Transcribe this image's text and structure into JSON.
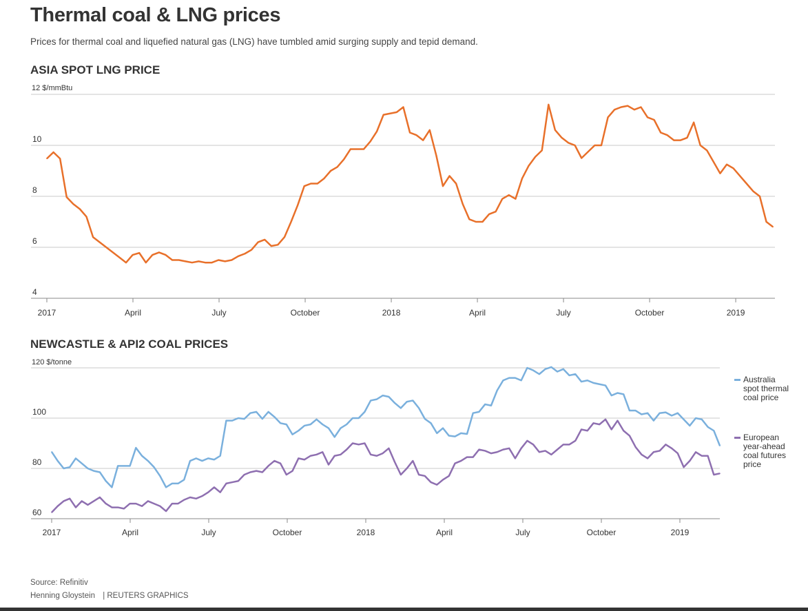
{
  "header": {
    "title": "Thermal coal & LNG prices",
    "subtitle": "Prices for thermal coal and liquefied natural gas (LNG) have tumbled amid surging supply and tepid demand."
  },
  "footer": {
    "source": "Source: Refinitiv",
    "credit": "Henning Gloystein",
    "brand": "| REUTERS GRAPHICS"
  },
  "chart_data": [
    {
      "type": "line",
      "title": "ASIA SPOT LNG PRICE",
      "unit_label": "12 $/mmBtu",
      "xlabel": "",
      "ylabel": "$/mmBtu",
      "ylim": [
        4,
        12
      ],
      "yticks": [
        4,
        6,
        8,
        10,
        12
      ],
      "ytick_labels": [
        "4",
        "6",
        "8",
        "10",
        ""
      ],
      "x_start": "2017-01",
      "x_interval": "weekly",
      "xtick_labels": [
        "2017",
        "April",
        "July",
        "October",
        "2018",
        "April",
        "July",
        "October",
        "2019"
      ],
      "xtick_months": [
        0,
        3,
        6,
        9,
        12,
        15,
        18,
        21,
        24
      ],
      "grid": true,
      "colors": {
        "line": "#e8702a"
      },
      "series": [
        {
          "name": "Asia spot LNG price",
          "values": [
            9.48,
            9.73,
            9.48,
            7.97,
            7.7,
            7.5,
            7.2,
            6.4,
            6.2,
            6.0,
            5.8,
            5.6,
            5.4,
            5.7,
            5.78,
            5.4,
            5.7,
            5.8,
            5.7,
            5.5,
            5.5,
            5.45,
            5.4,
            5.45,
            5.4,
            5.4,
            5.5,
            5.45,
            5.5,
            5.65,
            5.75,
            5.9,
            6.2,
            6.3,
            6.05,
            6.1,
            6.4,
            7.0,
            7.65,
            8.4,
            8.5,
            8.5,
            8.7,
            9.0,
            9.15,
            9.45,
            9.85,
            9.85,
            9.85,
            10.15,
            10.55,
            11.2,
            11.25,
            11.3,
            11.5,
            10.5,
            10.4,
            10.2,
            10.6,
            9.6,
            8.4,
            8.8,
            8.5,
            7.7,
            7.1,
            7.0,
            7.0,
            7.3,
            7.4,
            7.9,
            8.05,
            7.9,
            8.7,
            9.2,
            9.55,
            9.8,
            11.6,
            10.6,
            10.3,
            10.1,
            10.0,
            9.5,
            9.75,
            10.0,
            10.0,
            11.1,
            11.4,
            11.5,
            11.55,
            11.4,
            11.5,
            11.1,
            11.0,
            10.5,
            10.4,
            10.2,
            10.2,
            10.3,
            10.9,
            10.0,
            9.8,
            9.35,
            8.9,
            9.25,
            9.1,
            8.8,
            8.5,
            8.2,
            8.0,
            7.0,
            6.8
          ]
        }
      ]
    },
    {
      "type": "line",
      "title": "NEWCASTLE & API2 COAL PRICES",
      "unit_label": "120 $/tonne",
      "xlabel": "",
      "ylabel": "$/tonne",
      "ylim": [
        60,
        120
      ],
      "yticks": [
        60,
        80,
        100,
        120
      ],
      "ytick_labels": [
        "60",
        "80",
        "100",
        ""
      ],
      "x_start": "2017-01",
      "x_interval": "weekly",
      "xtick_labels": [
        "2017",
        "April",
        "July",
        "October",
        "2018",
        "April",
        "July",
        "October",
        "2019"
      ],
      "xtick_months": [
        0,
        3,
        6,
        9,
        12,
        15,
        18,
        21,
        24
      ],
      "grid": true,
      "legend_position": "right",
      "series": [
        {
          "name": "Australia spot thermal coal price",
          "color": "#7ab0dd",
          "values": [
            86.6,
            83,
            80,
            80.5,
            84,
            82,
            80,
            79,
            78.5,
            75,
            72.5,
            81,
            81,
            81,
            88.2,
            85,
            83,
            80.5,
            77,
            72.5,
            74,
            74,
            75.5,
            83,
            84,
            83,
            84,
            83.5,
            85,
            99,
            99,
            100,
            99.7,
            102,
            102.5,
            99.7,
            102.5,
            100.5,
            98,
            97.5,
            93.5,
            95,
            97,
            97.5,
            99.5,
            97.5,
            96,
            92.5,
            96,
            97.5,
            100,
            100,
            102.5,
            107,
            107.5,
            109,
            108.5,
            106,
            104,
            106.5,
            107,
            104,
            99.7,
            98,
            94,
            96,
            93,
            92.7,
            94,
            93.7,
            102,
            102.5,
            105.5,
            105,
            111,
            115,
            116,
            116,
            115,
            120,
            119,
            117.5,
            119.5,
            120.3,
            118.5,
            119.5,
            117,
            117.5,
            114.5,
            115,
            114,
            113.5,
            113,
            109,
            110,
            109.5,
            103,
            103,
            101.5,
            102,
            99,
            102,
            102.3,
            101,
            102,
            99.5,
            97,
            100,
            99.5,
            96.5,
            95,
            89
          ]
        },
        {
          "name": "European year-ahead coal futures price",
          "color": "#8e6fb0",
          "values": [
            62.5,
            65,
            67,
            68,
            64.5,
            67,
            65.5,
            67,
            68.5,
            66,
            64.5,
            64.5,
            64,
            66,
            66,
            65,
            67,
            66,
            65,
            63,
            66,
            66,
            67.5,
            68.5,
            68,
            69,
            70.5,
            72.5,
            70.5,
            74,
            74.5,
            75,
            77.5,
            78.5,
            79,
            78.5,
            81,
            83,
            82,
            77.5,
            79,
            84,
            83.5,
            85,
            85.5,
            86.5,
            81.5,
            85,
            85.5,
            87.5,
            90,
            89.5,
            90,
            85.5,
            85,
            86,
            88,
            82.5,
            77.5,
            80,
            83,
            77.5,
            77,
            74.5,
            73.5,
            75.5,
            77,
            82,
            83,
            84.5,
            84.5,
            87.5,
            87,
            86,
            86.5,
            87.5,
            88,
            84,
            88,
            91,
            89.5,
            86.5,
            87,
            85.5,
            87.5,
            89.5,
            89.5,
            91,
            95.5,
            95,
            98,
            97.5,
            99.5,
            95.5,
            99,
            95,
            93,
            88.5,
            85.5,
            84,
            86.5,
            87,
            89.5,
            88,
            86,
            80.5,
            83,
            86.5,
            85,
            85,
            77.5,
            78
          ]
        }
      ],
      "legend": [
        "Australia spot thermal coal price",
        "European year-ahead coal futures price"
      ]
    }
  ]
}
